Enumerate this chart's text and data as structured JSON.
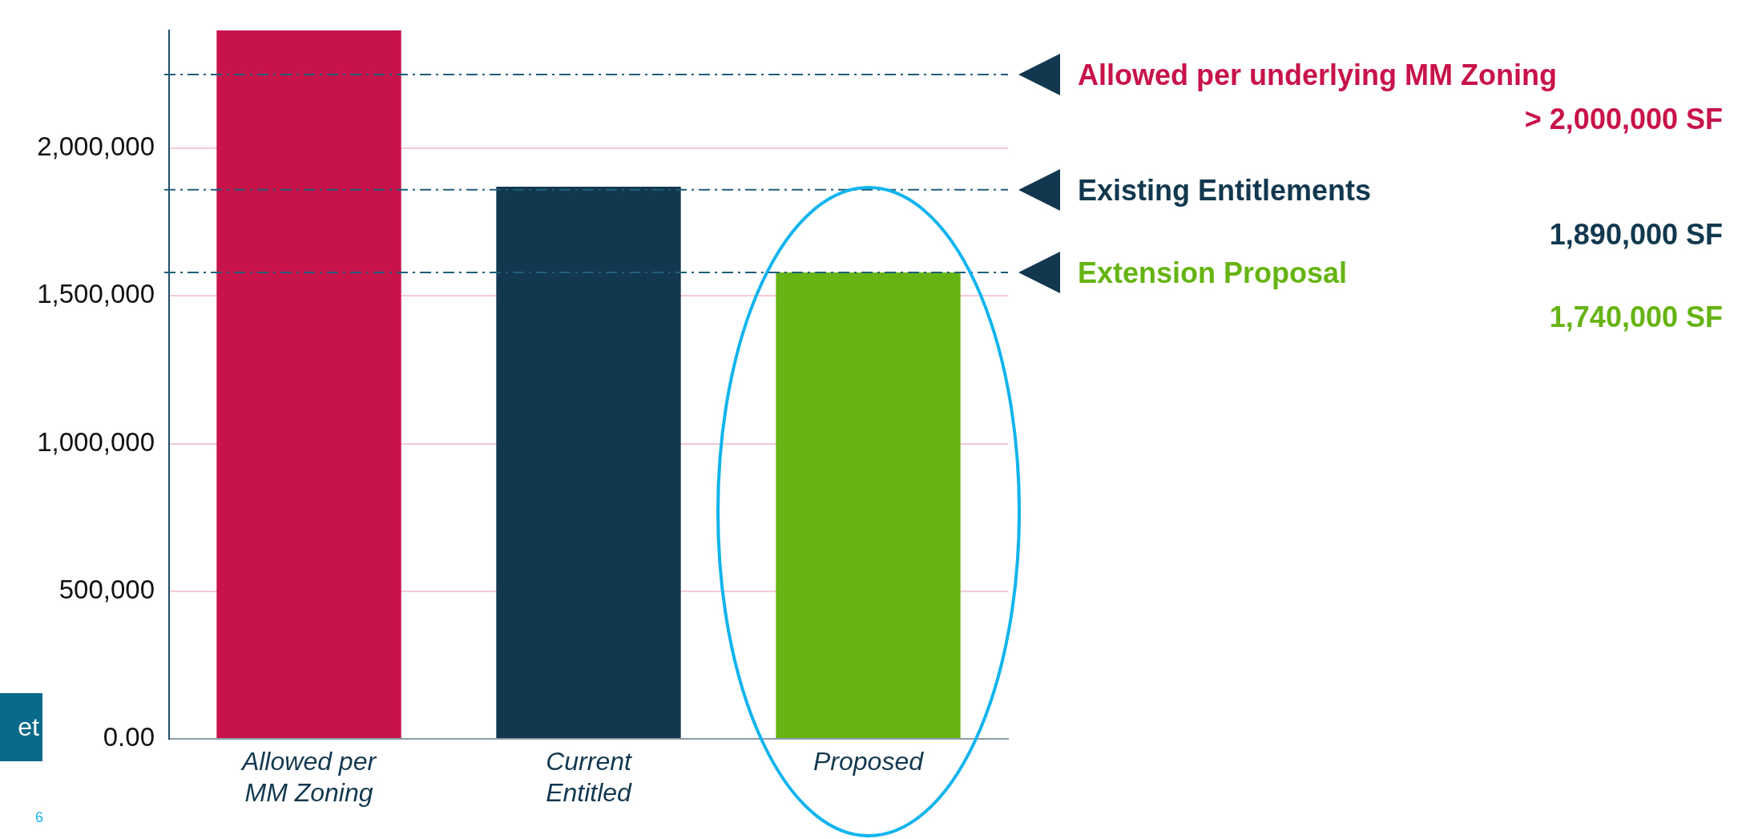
{
  "chart_data": {
    "type": "bar",
    "categories": [
      "Allowed per MM Zoning",
      "Current Entitled",
      "Proposed"
    ],
    "values": [
      2400000,
      1870000,
      1580000
    ],
    "colors": [
      "#c8124a",
      "#12384f",
      "#66b414"
    ],
    "ylim": [
      0,
      2400000
    ],
    "yticks": [
      {
        "value": 0,
        "label": "0.00"
      },
      {
        "value": 500000,
        "label": "500,000"
      },
      {
        "value": 1000000,
        "label": "1,000,000"
      },
      {
        "value": 1500000,
        "label": "1,500,000"
      },
      {
        "value": 2000000,
        "label": "2,000,000"
      }
    ],
    "grid": "y",
    "legend": false,
    "ref_lines": [
      {
        "axis": "y",
        "value": 2250000,
        "label": "Allowed per underlying MM Zoning",
        "color": "#1f5f7a",
        "line_style": "dashed"
      },
      {
        "axis": "y",
        "value": 1860000,
        "label": "Existing Entitlements",
        "color": "#1f5f7a",
        "line_style": "dashed"
      },
      {
        "axis": "y",
        "value": 1580000,
        "label": "Extension Proposal",
        "color": "#1f5f7a",
        "line_style": "dashed"
      }
    ],
    "annotations": [
      "> 2,000,000 SF",
      "1,890,000 SF",
      "1,740,000 SF",
      "et",
      "6"
    ]
  }
}
